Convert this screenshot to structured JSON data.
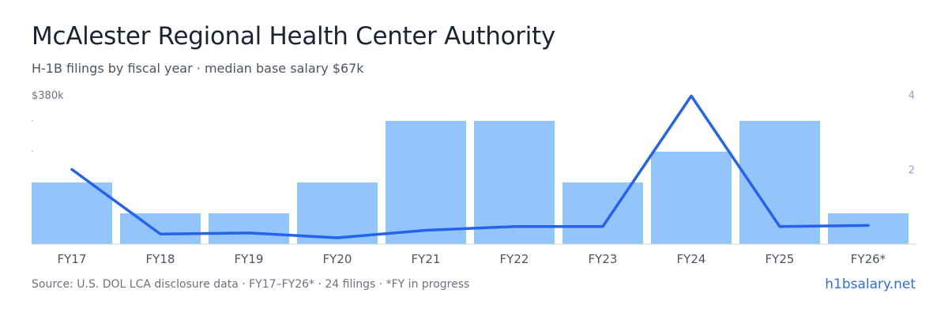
{
  "header": {
    "title": "McAlester Regional Health Center Authority",
    "subtitle": "H-1B filings by fiscal year · median base salary $67k"
  },
  "footer": {
    "source": "Source: U.S. DOL LCA disclosure data · FY17–FY26* · 24 filings · *FY in progress",
    "brand": "h1bsalary.net"
  },
  "colors": {
    "bar": "#93c5fb",
    "line": "#2563eb",
    "axis": "#d1d5db",
    "left_tick": "#6b7280",
    "right_tick": "#9aa3c7"
  },
  "chart_data": {
    "type": "bar",
    "categories": [
      "FY17",
      "FY18",
      "FY19",
      "FY20",
      "FY21",
      "FY22",
      "FY23",
      "FY24",
      "FY25",
      "FY26*"
    ],
    "series": [
      {
        "values": [
          2,
          1,
          1,
          2,
          4,
          4,
          2,
          3,
          4,
          1
        ]
      },
      {
        "values": [
          2.0,
          0.27,
          0.3,
          0.17,
          0.37,
          0.47,
          0.47,
          3.97,
          0.47,
          0.5
        ]
      }
    ],
    "left_axis": {
      "tick_label": "$380k"
    },
    "right_axis": {
      "ticks": [
        2,
        4
      ],
      "ylim": [
        0,
        4
      ]
    },
    "bar_ylim": [
      0,
      4
    ],
    "grid": false
  }
}
